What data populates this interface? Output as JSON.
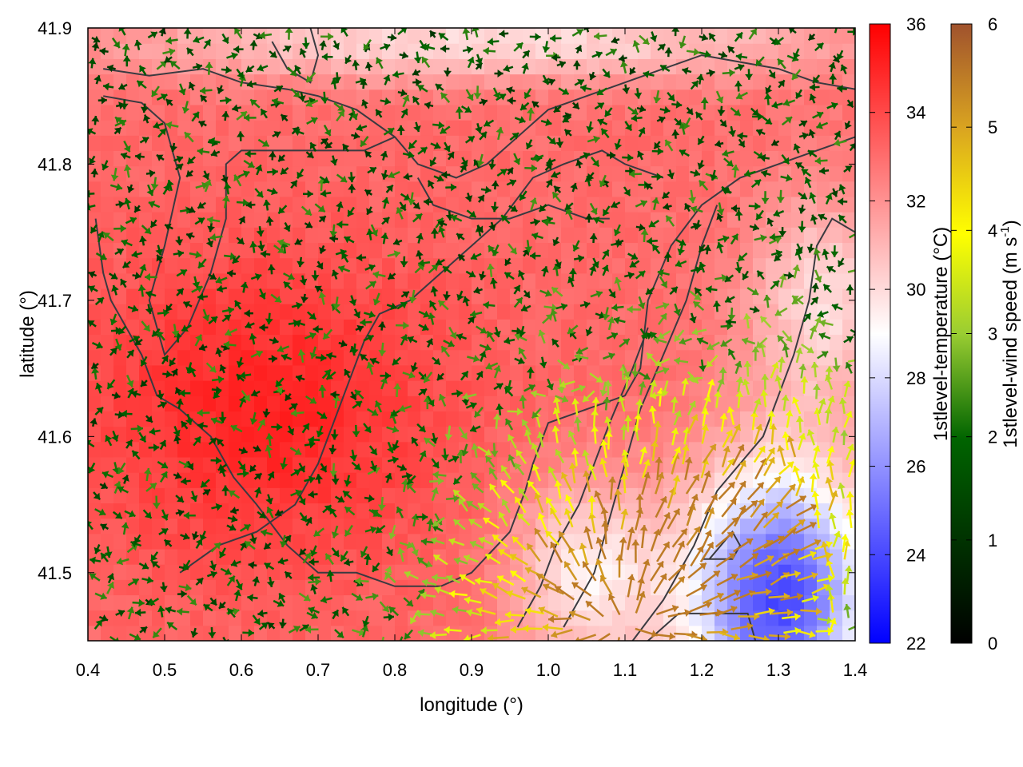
{
  "chart_data": {
    "type": "heatmap",
    "title": "",
    "xlabel": "longitude (°)",
    "ylabel": "latitude (°)",
    "xlim": [
      0.4,
      1.4
    ],
    "ylim": [
      41.45,
      41.9
    ],
    "x_ticks": [
      "0.4",
      "0.5",
      "0.6",
      "0.7",
      "0.8",
      "0.9",
      "1.0",
      "1.1",
      "1.2",
      "1.3",
      "1.4"
    ],
    "y_ticks": [
      "41.5",
      "41.6",
      "41.7",
      "41.8",
      "41.9"
    ],
    "grid": false,
    "temperature_colorbar": {
      "label": "1stlevel-temperature (°C)",
      "range": [
        22,
        36
      ],
      "ticks": [
        "22",
        "24",
        "26",
        "28",
        "30",
        "32",
        "34",
        "36"
      ],
      "colors": [
        "#0000ff",
        "#ffffff",
        "#ff0000"
      ]
    },
    "wind_colorbar": {
      "label_main": "1stlevel-wind speed (m s",
      "label_sup": "-1",
      "label_end": ")",
      "range": [
        0,
        6
      ],
      "ticks": [
        "0",
        "1",
        "2",
        "3",
        "4",
        "5",
        "6"
      ],
      "colors": [
        "#000000",
        "#006400",
        "#9acd32",
        "#ffff00",
        "#daa520",
        "#a0522d"
      ]
    },
    "temperature_field": {
      "description_values_degC": {
        "background": 33,
        "warm_core": {
          "lon": 0.63,
          "lat": 41.62,
          "value": 35
        },
        "cool_core": {
          "lon": 1.3,
          "lat": 41.48,
          "value": 24
        },
        "coastal_band": {
          "lon": 1.05,
          "lat": 41.5,
          "value": 29
        }
      }
    },
    "wind_field": {
      "inland_speed_ms": 1.5,
      "coastal_speed_ms": 4.5,
      "max_speed_ms": 5.5
    }
  }
}
